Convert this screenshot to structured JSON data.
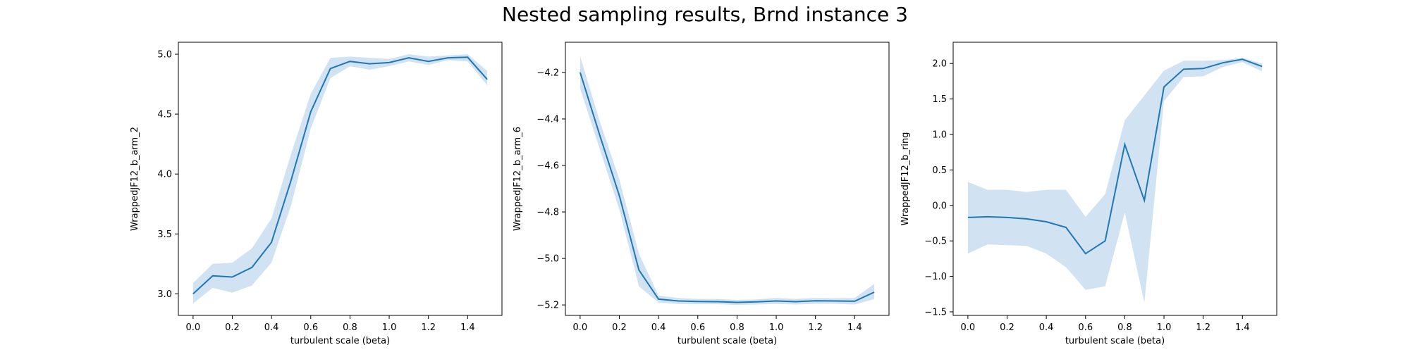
{
  "figure": {
    "title": "Nested sampling results, Brnd instance 3"
  },
  "colors": {
    "line": "#1f77b4",
    "band": "#c6dbef"
  },
  "chart_data": [
    {
      "type": "line",
      "xlabel": "turbulent scale (beta)",
      "ylabel": "WrappedJF12_b_arm_2",
      "xlim": [
        -0.075,
        1.575
      ],
      "ylim": [
        2.82,
        5.1
      ],
      "xticks": [
        0.0,
        0.2,
        0.4,
        0.6,
        0.8,
        1.0,
        1.2,
        1.4
      ],
      "yticks": [
        3.0,
        3.5,
        4.0,
        4.5,
        5.0
      ],
      "x": [
        0.0,
        0.1,
        0.2,
        0.3,
        0.4,
        0.5,
        0.6,
        0.7,
        0.8,
        0.9,
        1.0,
        1.1,
        1.2,
        1.3,
        1.4,
        1.5
      ],
      "y": [
        3.0,
        3.15,
        3.14,
        3.22,
        3.43,
        3.95,
        4.52,
        4.88,
        4.94,
        4.92,
        4.93,
        4.97,
        4.94,
        4.97,
        4.975,
        4.79
      ],
      "lower": [
        2.92,
        3.05,
        3.01,
        3.07,
        3.26,
        3.74,
        4.38,
        4.8,
        4.9,
        4.87,
        4.9,
        4.94,
        4.91,
        4.95,
        4.94,
        4.74
      ],
      "upper": [
        3.09,
        3.25,
        3.26,
        3.38,
        3.63,
        4.17,
        4.67,
        4.97,
        4.98,
        4.97,
        4.96,
        5.0,
        4.98,
        4.99,
        5.0,
        4.86
      ]
    },
    {
      "type": "line",
      "xlabel": "turbulent scale (beta)",
      "ylabel": "WrappedJF12_b_arm_6",
      "xlim": [
        -0.075,
        1.575
      ],
      "ylim": [
        -5.245,
        -4.07
      ],
      "xticks": [
        0.0,
        0.2,
        0.4,
        0.6,
        0.8,
        1.0,
        1.2,
        1.4
      ],
      "yticks": [
        -4.2,
        -4.4,
        -4.6,
        -4.8,
        -5.0,
        -5.2
      ],
      "x": [
        0.0,
        0.1,
        0.2,
        0.3,
        0.4,
        0.5,
        0.6,
        0.7,
        0.8,
        0.9,
        1.0,
        1.1,
        1.2,
        1.3,
        1.4,
        1.5
      ],
      "y": [
        -4.2,
        -4.47,
        -4.73,
        -5.05,
        -5.175,
        -5.183,
        -5.185,
        -5.186,
        -5.189,
        -5.187,
        -5.183,
        -5.186,
        -5.182,
        -5.183,
        -5.184,
        -5.145
      ],
      "lower": [
        -4.27,
        -4.53,
        -4.79,
        -5.12,
        -5.19,
        -5.196,
        -5.197,
        -5.197,
        -5.2,
        -5.198,
        -5.196,
        -5.198,
        -5.195,
        -5.195,
        -5.198,
        -5.175
      ],
      "upper": [
        -4.13,
        -4.41,
        -4.66,
        -4.98,
        -5.16,
        -5.17,
        -5.174,
        -5.174,
        -5.178,
        -5.176,
        -5.17,
        -5.174,
        -5.17,
        -5.171,
        -5.17,
        -5.11
      ]
    },
    {
      "type": "line",
      "xlabel": "turbulent scale (beta)",
      "ylabel": "WrappedJF12_b_ring",
      "xlim": [
        -0.075,
        1.575
      ],
      "ylim": [
        -1.55,
        2.3
      ],
      "xticks": [
        0.0,
        0.2,
        0.4,
        0.6,
        0.8,
        1.0,
        1.2,
        1.4
      ],
      "yticks": [
        2.0,
        1.5,
        1.0,
        0.5,
        0.0,
        -0.5,
        -1.0,
        -1.5
      ],
      "x": [
        0.0,
        0.1,
        0.2,
        0.3,
        0.4,
        0.5,
        0.6,
        0.7,
        0.8,
        0.9,
        1.0,
        1.1,
        1.2,
        1.3,
        1.4,
        1.5
      ],
      "y": [
        -0.17,
        -0.16,
        -0.17,
        -0.19,
        -0.23,
        -0.31,
        -0.68,
        -0.5,
        0.86,
        0.07,
        1.67,
        1.92,
        1.93,
        2.01,
        2.06,
        1.96
      ],
      "lower": [
        -0.68,
        -0.55,
        -0.56,
        -0.57,
        -0.68,
        -0.87,
        -1.19,
        -1.14,
        -0.1,
        -1.37,
        1.47,
        1.81,
        1.82,
        1.95,
        2.02,
        1.89
      ],
      "upper": [
        0.33,
        0.22,
        0.22,
        0.19,
        0.22,
        0.22,
        -0.16,
        0.16,
        1.2,
        1.55,
        1.9,
        2.04,
        2.04,
        2.05,
        2.08,
        2.0
      ]
    }
  ]
}
